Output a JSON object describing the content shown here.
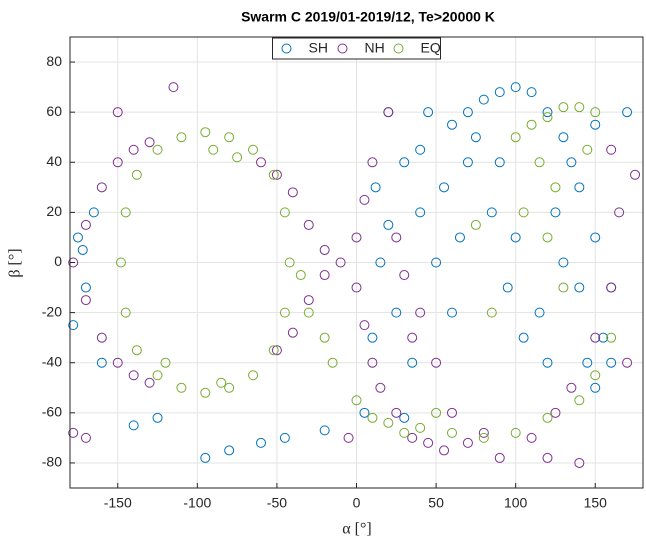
{
  "chart_data": {
    "type": "scatter",
    "title": "Swarm C 2019/01-2019/12, Te>20000 K",
    "xlabel": "α [°]",
    "ylabel": "β [°]",
    "xlim": [
      -180,
      180
    ],
    "ylim": [
      -90,
      90
    ],
    "xticks": [
      -150,
      -100,
      -50,
      0,
      50,
      100,
      150
    ],
    "yticks": [
      -80,
      -60,
      -40,
      -20,
      0,
      20,
      40,
      60,
      80
    ],
    "grid": true,
    "legend": "top",
    "series": [
      {
        "name": "SH",
        "color": "#0072bd",
        "x": [
          20,
          30,
          40,
          50,
          60,
          70,
          80,
          90,
          100,
          110,
          120,
          130,
          140,
          150,
          160,
          155,
          145,
          25,
          35,
          45,
          55,
          65,
          75,
          85,
          95,
          105,
          115,
          125,
          135,
          140,
          150,
          160,
          170,
          15,
          10,
          12,
          -175,
          -170,
          -178,
          -165,
          -172,
          -160,
          -140,
          -125,
          -95,
          -80,
          -60,
          -45,
          -20,
          5,
          30,
          70,
          90,
          100,
          120,
          130,
          60,
          40,
          20,
          150
        ],
        "values": [
          60,
          40,
          20,
          0,
          -20,
          40,
          65,
          68,
          70,
          68,
          60,
          50,
          30,
          10,
          -10,
          -30,
          -40,
          -20,
          -40,
          60,
          30,
          10,
          50,
          20,
          -10,
          -30,
          -20,
          20,
          40,
          -10,
          -50,
          -40,
          60,
          0,
          -30,
          30,
          10,
          -10,
          -25,
          20,
          5,
          -40,
          -65,
          -62,
          -78,
          -75,
          -72,
          -70,
          -67,
          -60,
          -62,
          60,
          40,
          10,
          -40,
          0,
          55,
          45,
          15,
          55
        ]
      },
      {
        "name": "NH",
        "color": "#7e2f8e",
        "x": [
          -178,
          -170,
          -160,
          -150,
          -140,
          -130,
          -170,
          -160,
          -150,
          -140,
          -130,
          -60,
          -50,
          -40,
          -30,
          -20,
          -10,
          0,
          5,
          10,
          15,
          -50,
          -40,
          -30,
          -20,
          0,
          5,
          10,
          20,
          25,
          35,
          45,
          55,
          70,
          90,
          110,
          125,
          135,
          150,
          160,
          170,
          165,
          175,
          160,
          30,
          40,
          50,
          25,
          -115,
          -150,
          -178,
          -170,
          140,
          120,
          -5,
          60,
          80,
          35
        ],
        "values": [
          0,
          15,
          30,
          40,
          45,
          48,
          -15,
          -30,
          -40,
          -45,
          -48,
          40,
          35,
          28,
          15,
          5,
          0,
          -10,
          -25,
          -40,
          -50,
          -35,
          -28,
          -15,
          -5,
          10,
          25,
          40,
          60,
          -60,
          -70,
          -72,
          -75,
          -72,
          -78,
          -70,
          -60,
          -50,
          -30,
          -10,
          -40,
          20,
          35,
          45,
          -5,
          -20,
          -40,
          10,
          70,
          60,
          -68,
          -70,
          -80,
          -78,
          -70,
          -60,
          -68,
          -30
        ]
      },
      {
        "name": "EQ",
        "color": "#77ac30",
        "x": [
          -95,
          -80,
          -65,
          -52,
          -45,
          -42,
          -45,
          -52,
          -65,
          -80,
          -95,
          -110,
          -125,
          -138,
          -145,
          -148,
          -145,
          -138,
          -125,
          -110,
          -90,
          -75,
          -120,
          -85,
          -30,
          -20,
          -35,
          -15,
          0,
          10,
          20,
          40,
          60,
          80,
          100,
          120,
          140,
          150,
          160,
          100,
          110,
          120,
          130,
          140,
          150,
          115,
          125,
          105,
          130,
          75,
          85,
          145,
          120,
          50,
          30
        ],
        "values": [
          52,
          50,
          45,
          35,
          20,
          0,
          -20,
          -35,
          -45,
          -50,
          -52,
          -50,
          -45,
          -35,
          -20,
          0,
          20,
          35,
          45,
          50,
          45,
          42,
          -40,
          -48,
          -20,
          -30,
          -5,
          -40,
          -55,
          -62,
          -64,
          -66,
          -68,
          -70,
          -68,
          -62,
          -55,
          -45,
          -30,
          50,
          55,
          58,
          62,
          62,
          60,
          40,
          30,
          20,
          -10,
          15,
          -20,
          45,
          10,
          -60,
          -68
        ]
      }
    ]
  }
}
